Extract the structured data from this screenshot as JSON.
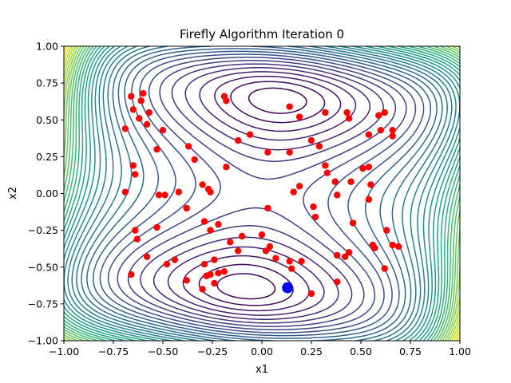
{
  "chart_data": {
    "type": "scatter",
    "title": "Firefly Algorithm Iteration 0",
    "xlabel": "x1",
    "ylabel": "x2",
    "xlim": [
      -1.0,
      1.0
    ],
    "ylim": [
      -1.0,
      1.0
    ],
    "xticks": [
      -1.0,
      -0.75,
      -0.5,
      -0.25,
      0.0,
      0.25,
      0.5,
      0.75,
      1.0
    ],
    "yticks": [
      -1.0,
      -0.75,
      -0.5,
      -0.25,
      0.0,
      0.25,
      0.5,
      0.75,
      1.0
    ],
    "xtick_labels": [
      "−1.00",
      "−0.75",
      "−0.50",
      "−0.25",
      "0.00",
      "0.25",
      "0.50",
      "0.75",
      "1.00"
    ],
    "ytick_labels": [
      "−1.00",
      "−0.75",
      "−0.50",
      "−0.25",
      "0.00",
      "0.25",
      "0.50",
      "0.75",
      "1.00"
    ],
    "grid": false,
    "background": "contour plot of objective function (viridis colormap), minima near (-0.09, 0.71) and (0.09, -0.71), saddle at (0, 0)",
    "colors": {
      "fireflies": "#ff0000",
      "best": "#0000ff"
    },
    "series": [
      {
        "values": [
          [
            -0.66,
            0.66
          ],
          [
            -0.6,
            0.68
          ],
          [
            -0.65,
            0.57
          ],
          [
            -0.61,
            0.63
          ],
          [
            -0.57,
            0.55
          ],
          [
            -0.62,
            0.51
          ],
          [
            -0.69,
            0.44
          ],
          [
            -0.58,
            0.47
          ],
          [
            -0.5,
            0.43
          ],
          [
            -0.53,
            0.3
          ],
          [
            -0.65,
            0.19
          ],
          [
            -0.64,
            0.13
          ],
          [
            -0.69,
            0.01
          ],
          [
            -0.52,
            -0.01
          ],
          [
            -0.49,
            -0.01
          ],
          [
            -0.42,
            0.01
          ],
          [
            -0.37,
            0.32
          ],
          [
            -0.34,
            0.23
          ],
          [
            -0.38,
            -0.1
          ],
          [
            -0.64,
            -0.25
          ],
          [
            -0.63,
            -0.31
          ],
          [
            -0.53,
            -0.23
          ],
          [
            -0.58,
            -0.43
          ],
          [
            -0.48,
            -0.48
          ],
          [
            -0.44,
            -0.45
          ],
          [
            -0.66,
            -0.55
          ],
          [
            -0.38,
            -0.59
          ],
          [
            -0.3,
            0.06
          ],
          [
            -0.27,
            0.03
          ],
          [
            -0.26,
            0.01
          ],
          [
            -0.29,
            -0.19
          ],
          [
            -0.26,
            -0.25
          ],
          [
            -0.22,
            -0.21
          ],
          [
            -0.18,
            0.18
          ],
          [
            -0.19,
            0.66
          ],
          [
            -0.18,
            0.63
          ],
          [
            -0.12,
            0.36
          ],
          [
            -0.06,
            0.4
          ],
          [
            -0.16,
            -0.33
          ],
          [
            -0.1,
            -0.29
          ],
          [
            -0.12,
            -0.39
          ],
          [
            -0.24,
            -0.45
          ],
          [
            -0.29,
            -0.48
          ],
          [
            -0.26,
            -0.55
          ],
          [
            -0.28,
            -0.56
          ],
          [
            -0.22,
            -0.54
          ],
          [
            -0.19,
            -0.53
          ],
          [
            -0.24,
            -0.61
          ],
          [
            -0.3,
            -0.65
          ],
          [
            0.0,
            -0.28
          ],
          [
            0.02,
            -0.39
          ],
          [
            0.04,
            -0.36
          ],
          [
            0.07,
            -0.44
          ],
          [
            0.14,
            -0.46
          ],
          [
            0.15,
            -0.51
          ],
          [
            0.2,
            -0.46
          ],
          [
            0.03,
            -0.1
          ],
          [
            0.03,
            0.28
          ],
          [
            0.14,
            0.28
          ],
          [
            0.14,
            0.59
          ],
          [
            0.19,
            0.52
          ],
          [
            0.16,
            0.01
          ],
          [
            0.19,
            0.05
          ],
          [
            0.25,
            0.36
          ],
          [
            0.29,
            0.32
          ],
          [
            0.32,
            0.55
          ],
          [
            0.33,
            0.14
          ],
          [
            0.32,
            0.19
          ],
          [
            0.37,
            0.08
          ],
          [
            0.38,
            -0.01
          ],
          [
            0.26,
            -0.09
          ],
          [
            0.27,
            -0.16
          ],
          [
            0.25,
            -0.68
          ],
          [
            0.38,
            -0.42
          ],
          [
            0.42,
            -0.43
          ],
          [
            0.44,
            -0.4
          ],
          [
            0.38,
            -0.6
          ],
          [
            0.43,
            0.55
          ],
          [
            0.44,
            0.51
          ],
          [
            0.45,
            0.08
          ],
          [
            0.46,
            -0.2
          ],
          [
            0.51,
            0.17
          ],
          [
            0.54,
            0.18
          ],
          [
            0.54,
            0.4
          ],
          [
            0.55,
            0.06
          ],
          [
            0.54,
            -0.04
          ],
          [
            0.56,
            -0.35
          ],
          [
            0.57,
            -0.37
          ],
          [
            0.59,
            0.53
          ],
          [
            0.62,
            0.55
          ],
          [
            0.6,
            0.43
          ],
          [
            0.66,
            0.43
          ],
          [
            0.66,
            0.39
          ],
          [
            0.63,
            -0.25
          ],
          [
            0.66,
            -0.35
          ],
          [
            0.69,
            -0.36
          ],
          [
            0.62,
            -0.51
          ]
        ]
      },
      {
        "values": [
          [
            0.13,
            -0.64
          ]
        ]
      }
    ]
  }
}
